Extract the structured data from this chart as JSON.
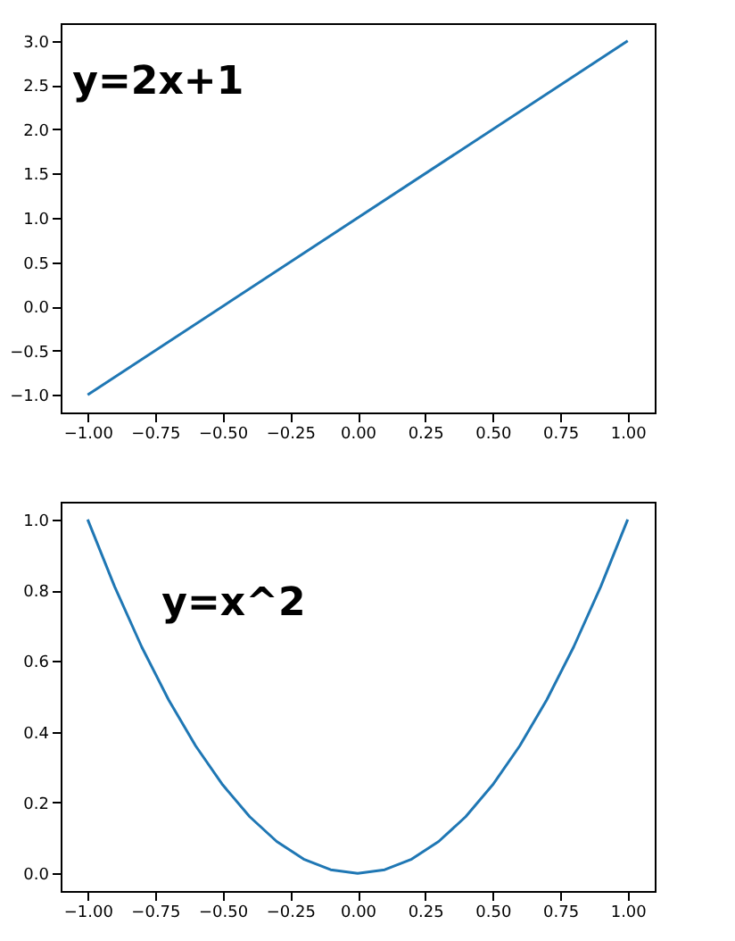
{
  "chart_data": [
    {
      "type": "line",
      "annotations": [
        "y=2x+1"
      ],
      "x": [
        -1,
        1
      ],
      "series": [
        {
          "color": "#1f77b4",
          "values": [
            -1,
            3
          ]
        }
      ],
      "xlim": [
        -1.1,
        1.1
      ],
      "ylim": [
        -1.2,
        3.2
      ],
      "xticks": [
        {
          "value": -1,
          "label": "−1.00"
        },
        {
          "value": -0.75,
          "label": "−0.75"
        },
        {
          "value": -0.5,
          "label": "−0.50"
        },
        {
          "value": -0.25,
          "label": "−0.25"
        },
        {
          "value": 0,
          "label": "0.00"
        },
        {
          "value": 0.25,
          "label": "0.25"
        },
        {
          "value": 0.5,
          "label": "0.50"
        },
        {
          "value": 0.75,
          "label": "0.75"
        },
        {
          "value": 1,
          "label": "1.00"
        }
      ],
      "yticks": [
        {
          "value": -1,
          "label": "−1.0"
        },
        {
          "value": -0.5,
          "label": "−0.5"
        },
        {
          "value": 0,
          "label": "0.0"
        },
        {
          "value": 0.5,
          "label": "0.5"
        },
        {
          "value": 1,
          "label": "1.0"
        },
        {
          "value": 1.5,
          "label": "1.5"
        },
        {
          "value": 2,
          "label": "2.0"
        },
        {
          "value": 2.5,
          "label": "2.5"
        },
        {
          "value": 3,
          "label": "3.0"
        }
      ],
      "grid": false
    },
    {
      "type": "line",
      "annotations": [
        "y=x^2"
      ],
      "x": [
        -1,
        -0.9,
        -0.8,
        -0.7,
        -0.6,
        -0.5,
        -0.4,
        -0.3,
        -0.2,
        -0.1,
        0,
        0.1,
        0.2,
        0.3,
        0.4,
        0.5,
        0.6,
        0.7,
        0.8,
        0.9,
        1
      ],
      "series": [
        {
          "color": "#1f77b4",
          "values": [
            1,
            0.81,
            0.64,
            0.49,
            0.36,
            0.25,
            0.16,
            0.09,
            0.04,
            0.01,
            0,
            0.01,
            0.04,
            0.09,
            0.16,
            0.25,
            0.36,
            0.49,
            0.64,
            0.81,
            1
          ]
        }
      ],
      "xlim": [
        -1.1,
        1.1
      ],
      "ylim": [
        -0.05,
        1.05
      ],
      "xticks": [
        {
          "value": -1,
          "label": "−1.00"
        },
        {
          "value": -0.75,
          "label": "−0.75"
        },
        {
          "value": -0.5,
          "label": "−0.50"
        },
        {
          "value": -0.25,
          "label": "−0.25"
        },
        {
          "value": 0,
          "label": "0.00"
        },
        {
          "value": 0.25,
          "label": "0.25"
        },
        {
          "value": 0.5,
          "label": "0.50"
        },
        {
          "value": 0.75,
          "label": "0.75"
        },
        {
          "value": 1,
          "label": "1.00"
        }
      ],
      "yticks": [
        {
          "value": 0,
          "label": "0.0"
        },
        {
          "value": 0.2,
          "label": "0.2"
        },
        {
          "value": 0.4,
          "label": "0.4"
        },
        {
          "value": 0.6,
          "label": "0.6"
        },
        {
          "value": 0.8,
          "label": "0.8"
        },
        {
          "value": 1,
          "label": "1.0"
        }
      ],
      "grid": false
    }
  ]
}
